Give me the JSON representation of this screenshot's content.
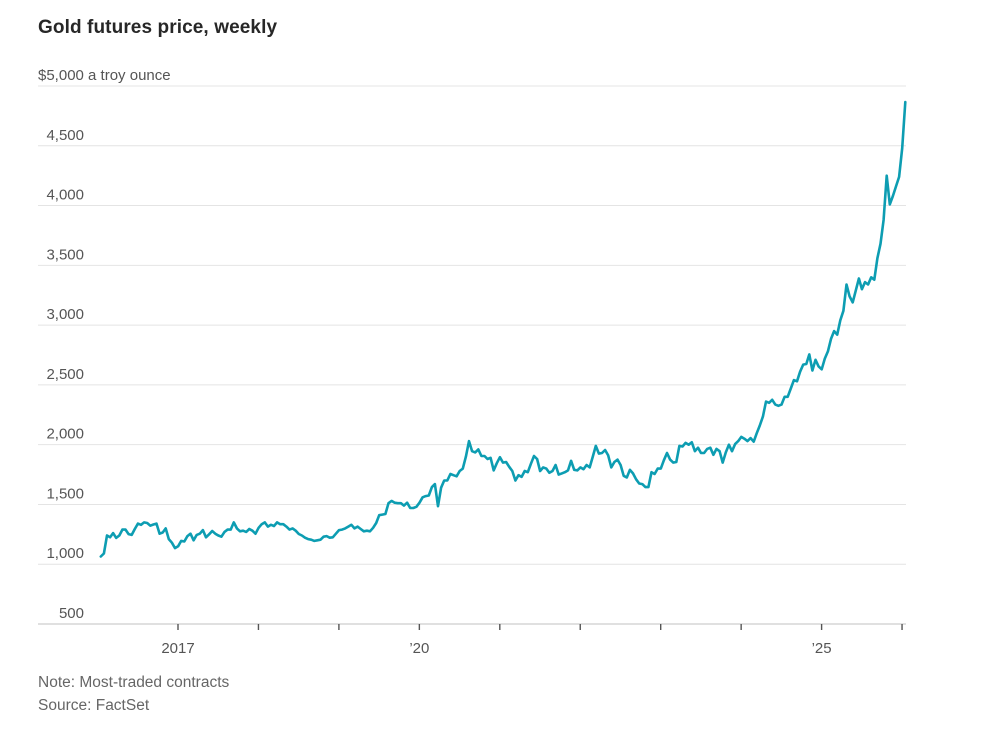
{
  "chart": {
    "title": "Gold futures price, weekly",
    "note": "Note: Most-traded contracts",
    "source": "Source: FactSet",
    "line_color": "#0d9db2",
    "grid_color": "#e4e4e4",
    "axis_color": "#c2c2c2",
    "tick_color": "#555555",
    "label_color": "#555555"
  },
  "chart_data": {
    "type": "line",
    "title": "Gold futures price, weekly",
    "ylabel": "$ a troy ounce",
    "ylim": [
      500,
      5000
    ],
    "xlim": [
      2016.0,
      2026.1
    ],
    "grid": true,
    "legend_position": "none",
    "y_ticks": [
      {
        "value": 5000,
        "label": "$5,000 a troy ounce",
        "align": "left"
      },
      {
        "value": 4500,
        "label": "4,500",
        "align": "right"
      },
      {
        "value": 4000,
        "label": "4,000",
        "align": "right"
      },
      {
        "value": 3500,
        "label": "3,500",
        "align": "right"
      },
      {
        "value": 3000,
        "label": "3,000",
        "align": "right"
      },
      {
        "value": 2500,
        "label": "2,500",
        "align": "right"
      },
      {
        "value": 2000,
        "label": "2,000",
        "align": "right"
      },
      {
        "value": 1500,
        "label": "1,500",
        "align": "right"
      },
      {
        "value": 1000,
        "label": "1,000",
        "align": "right"
      },
      {
        "value": 500,
        "label": "500",
        "align": "right"
      }
    ],
    "x_ticks": [
      {
        "year": 2017,
        "label": "2017"
      },
      {
        "year": 2018,
        "label": ""
      },
      {
        "year": 2019,
        "label": ""
      },
      {
        "year": 2020,
        "label": "’20"
      },
      {
        "year": 2021,
        "label": ""
      },
      {
        "year": 2022,
        "label": ""
      },
      {
        "year": 2023,
        "label": ""
      },
      {
        "year": 2024,
        "label": ""
      },
      {
        "year": 2025,
        "label": "’25"
      },
      {
        "year": 2026,
        "label": ""
      }
    ],
    "series": [
      {
        "name": "Gold futures price",
        "unit": "$ a troy ounce",
        "start_year": 2016.04,
        "points_per_year": 26,
        "values": [
          1065,
          1090,
          1240,
          1225,
          1260,
          1220,
          1240,
          1290,
          1290,
          1252,
          1245,
          1295,
          1340,
          1330,
          1350,
          1345,
          1322,
          1332,
          1340,
          1255,
          1265,
          1300,
          1210,
          1180,
          1135,
          1150,
          1195,
          1190,
          1235,
          1255,
          1200,
          1245,
          1255,
          1285,
          1225,
          1250,
          1278,
          1255,
          1240,
          1230,
          1270,
          1290,
          1290,
          1350,
          1300,
          1275,
          1280,
          1270,
          1295,
          1280,
          1255,
          1305,
          1335,
          1350,
          1315,
          1330,
          1320,
          1350,
          1335,
          1335,
          1315,
          1290,
          1300,
          1280,
          1253,
          1240,
          1222,
          1210,
          1205,
          1195,
          1200,
          1205,
          1230,
          1235,
          1222,
          1225,
          1255,
          1285,
          1290,
          1300,
          1315,
          1330,
          1300,
          1315,
          1295,
          1275,
          1280,
          1275,
          1305,
          1345,
          1410,
          1415,
          1420,
          1510,
          1530,
          1515,
          1510,
          1510,
          1490,
          1515,
          1470,
          1470,
          1480,
          1515,
          1560,
          1570,
          1575,
          1645,
          1670,
          1485,
          1640,
          1700,
          1700,
          1755,
          1745,
          1735,
          1780,
          1800,
          1900,
          2030,
          1945,
          1935,
          1960,
          1905,
          1905,
          1880,
          1890,
          1785,
          1845,
          1895,
          1850,
          1855,
          1815,
          1780,
          1700,
          1745,
          1730,
          1780,
          1770,
          1840,
          1905,
          1880,
          1780,
          1810,
          1800,
          1765,
          1780,
          1830,
          1750,
          1760,
          1770,
          1785,
          1865,
          1790,
          1785,
          1810,
          1795,
          1830,
          1810,
          1900,
          1990,
          1925,
          1930,
          1955,
          1910,
          1810,
          1855,
          1875,
          1830,
          1740,
          1725,
          1790,
          1760,
          1710,
          1675,
          1670,
          1645,
          1645,
          1770,
          1755,
          1800,
          1800,
          1870,
          1930,
          1875,
          1850,
          1855,
          1990,
          1985,
          2015,
          2000,
          2020,
          1945,
          1975,
          1930,
          1930,
          1965,
          1975,
          1915,
          1965,
          1945,
          1850,
          1935,
          2000,
          1945,
          2005,
          2030,
          2065,
          2050,
          2030,
          2055,
          2025,
          2095,
          2160,
          2235,
          2360,
          2350,
          2375,
          2335,
          2325,
          2335,
          2400,
          2400,
          2470,
          2540,
          2530,
          2610,
          2670,
          2675,
          2755,
          2620,
          2710,
          2655,
          2630,
          2720,
          2780,
          2885,
          2950,
          2920,
          3040,
          3120,
          3340,
          3240,
          3190,
          3290,
          3390,
          3300,
          3360,
          3340,
          3400,
          3380,
          3560,
          3680,
          3880,
          4250,
          4010,
          4080,
          4160,
          4240,
          4480,
          4865
        ]
      }
    ]
  }
}
